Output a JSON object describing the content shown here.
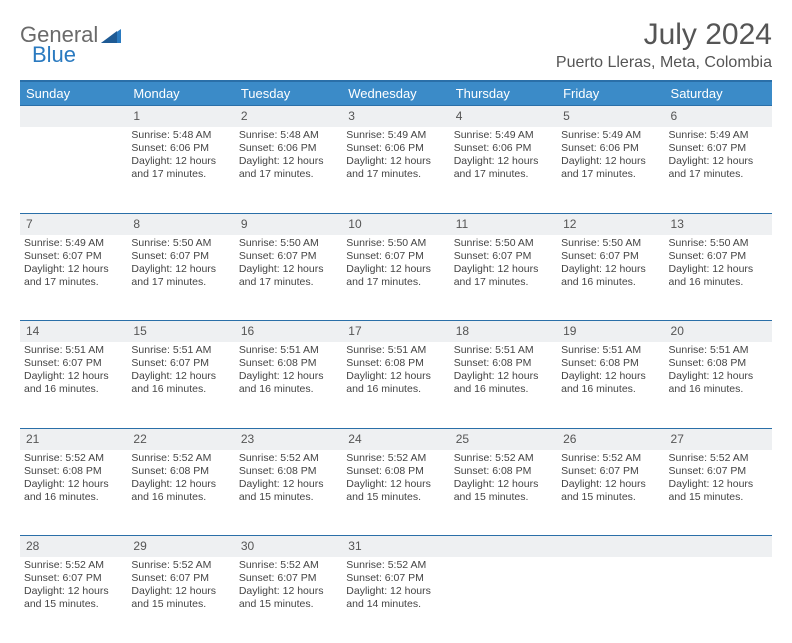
{
  "brand": {
    "part1": "General",
    "part2": "Blue"
  },
  "title": "July 2024",
  "location": "Puerto Lleras, Meta, Colombia",
  "colors": {
    "header_bg": "#3b8bc8",
    "header_border": "#2a6fa8",
    "daynum_bg": "#eef0f2",
    "text": "#444444",
    "title": "#555555",
    "brand_gray": "#6a6a6a",
    "brand_blue": "#2a7ac0"
  },
  "weekdays": [
    "Sunday",
    "Monday",
    "Tuesday",
    "Wednesday",
    "Thursday",
    "Friday",
    "Saturday"
  ],
  "weeks": [
    {
      "nums": [
        "",
        "1",
        "2",
        "3",
        "4",
        "5",
        "6"
      ],
      "cells": [
        null,
        {
          "sunrise": "5:48 AM",
          "sunset": "6:06 PM",
          "daylight": "12 hours and 17 minutes."
        },
        {
          "sunrise": "5:48 AM",
          "sunset": "6:06 PM",
          "daylight": "12 hours and 17 minutes."
        },
        {
          "sunrise": "5:49 AM",
          "sunset": "6:06 PM",
          "daylight": "12 hours and 17 minutes."
        },
        {
          "sunrise": "5:49 AM",
          "sunset": "6:06 PM",
          "daylight": "12 hours and 17 minutes."
        },
        {
          "sunrise": "5:49 AM",
          "sunset": "6:06 PM",
          "daylight": "12 hours and 17 minutes."
        },
        {
          "sunrise": "5:49 AM",
          "sunset": "6:07 PM",
          "daylight": "12 hours and 17 minutes."
        }
      ]
    },
    {
      "nums": [
        "7",
        "8",
        "9",
        "10",
        "11",
        "12",
        "13"
      ],
      "cells": [
        {
          "sunrise": "5:49 AM",
          "sunset": "6:07 PM",
          "daylight": "12 hours and 17 minutes."
        },
        {
          "sunrise": "5:50 AM",
          "sunset": "6:07 PM",
          "daylight": "12 hours and 17 minutes."
        },
        {
          "sunrise": "5:50 AM",
          "sunset": "6:07 PM",
          "daylight": "12 hours and 17 minutes."
        },
        {
          "sunrise": "5:50 AM",
          "sunset": "6:07 PM",
          "daylight": "12 hours and 17 minutes."
        },
        {
          "sunrise": "5:50 AM",
          "sunset": "6:07 PM",
          "daylight": "12 hours and 17 minutes."
        },
        {
          "sunrise": "5:50 AM",
          "sunset": "6:07 PM",
          "daylight": "12 hours and 16 minutes."
        },
        {
          "sunrise": "5:50 AM",
          "sunset": "6:07 PM",
          "daylight": "12 hours and 16 minutes."
        }
      ]
    },
    {
      "nums": [
        "14",
        "15",
        "16",
        "17",
        "18",
        "19",
        "20"
      ],
      "cells": [
        {
          "sunrise": "5:51 AM",
          "sunset": "6:07 PM",
          "daylight": "12 hours and 16 minutes."
        },
        {
          "sunrise": "5:51 AM",
          "sunset": "6:07 PM",
          "daylight": "12 hours and 16 minutes."
        },
        {
          "sunrise": "5:51 AM",
          "sunset": "6:08 PM",
          "daylight": "12 hours and 16 minutes."
        },
        {
          "sunrise": "5:51 AM",
          "sunset": "6:08 PM",
          "daylight": "12 hours and 16 minutes."
        },
        {
          "sunrise": "5:51 AM",
          "sunset": "6:08 PM",
          "daylight": "12 hours and 16 minutes."
        },
        {
          "sunrise": "5:51 AM",
          "sunset": "6:08 PM",
          "daylight": "12 hours and 16 minutes."
        },
        {
          "sunrise": "5:51 AM",
          "sunset": "6:08 PM",
          "daylight": "12 hours and 16 minutes."
        }
      ]
    },
    {
      "nums": [
        "21",
        "22",
        "23",
        "24",
        "25",
        "26",
        "27"
      ],
      "cells": [
        {
          "sunrise": "5:52 AM",
          "sunset": "6:08 PM",
          "daylight": "12 hours and 16 minutes."
        },
        {
          "sunrise": "5:52 AM",
          "sunset": "6:08 PM",
          "daylight": "12 hours and 16 minutes."
        },
        {
          "sunrise": "5:52 AM",
          "sunset": "6:08 PM",
          "daylight": "12 hours and 15 minutes."
        },
        {
          "sunrise": "5:52 AM",
          "sunset": "6:08 PM",
          "daylight": "12 hours and 15 minutes."
        },
        {
          "sunrise": "5:52 AM",
          "sunset": "6:08 PM",
          "daylight": "12 hours and 15 minutes."
        },
        {
          "sunrise": "5:52 AM",
          "sunset": "6:07 PM",
          "daylight": "12 hours and 15 minutes."
        },
        {
          "sunrise": "5:52 AM",
          "sunset": "6:07 PM",
          "daylight": "12 hours and 15 minutes."
        }
      ]
    },
    {
      "nums": [
        "28",
        "29",
        "30",
        "31",
        "",
        "",
        ""
      ],
      "cells": [
        {
          "sunrise": "5:52 AM",
          "sunset": "6:07 PM",
          "daylight": "12 hours and 15 minutes."
        },
        {
          "sunrise": "5:52 AM",
          "sunset": "6:07 PM",
          "daylight": "12 hours and 15 minutes."
        },
        {
          "sunrise": "5:52 AM",
          "sunset": "6:07 PM",
          "daylight": "12 hours and 15 minutes."
        },
        {
          "sunrise": "5:52 AM",
          "sunset": "6:07 PM",
          "daylight": "12 hours and 14 minutes."
        },
        null,
        null,
        null
      ]
    }
  ],
  "labels": {
    "sunrise": "Sunrise:",
    "sunset": "Sunset:",
    "daylight": "Daylight:"
  }
}
